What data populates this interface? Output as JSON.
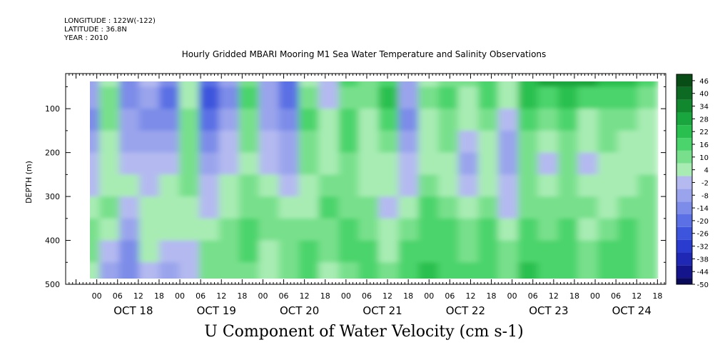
{
  "header": {
    "longitude": "LONGITUDE : 122W(-122)",
    "latitude": "LATITUDE : 36.8N",
    "year": "YEAR : 2010"
  },
  "chart_data": {
    "type": "heatmap",
    "title": "Hourly Gridded MBARI Mooring M1 Sea Water Temperature and Salinity Observations",
    "bottom_title": "U Component of Water Velocity (cm s-1)",
    "ylabel": "DEPTH (m)",
    "ylim": [
      500,
      20
    ],
    "y_ticks": [
      "100",
      "200",
      "300",
      "400",
      "500"
    ],
    "x_hour_ticks": [
      "00",
      "06",
      "12",
      "18",
      "00",
      "06",
      "12",
      "18",
      "00",
      "06",
      "12",
      "18",
      "00",
      "06",
      "12",
      "18",
      "00",
      "06",
      "12",
      "18",
      "00",
      "06",
      "12",
      "18",
      "00",
      "06",
      "12",
      "18"
    ],
    "x_day_labels": [
      "OCT 18",
      "OCT 19",
      "OCT 20",
      "OCT 21",
      "OCT 22",
      "OCT 23",
      "OCT 24"
    ],
    "colorbar_labels": [
      "46",
      "40",
      "34",
      "28",
      "22",
      "16",
      "10",
      "4",
      "-2",
      "-8",
      "-14",
      "-20",
      "-26",
      "-32",
      "-38",
      "-44",
      "-50"
    ],
    "colorbar_range": [
      -50,
      49
    ],
    "time_columns": [
      "17.67",
      "17.91",
      "18.15",
      "18.39",
      "18.63",
      "18.87",
      "19.11",
      "19.35",
      "19.59",
      "19.83",
      "20.07",
      "20.31",
      "20.55",
      "20.79",
      "21.03",
      "21.27",
      "21.51",
      "21.75",
      "21.99",
      "22.23",
      "22.47",
      "22.71",
      "22.95",
      "23.19",
      "23.43",
      "23.67",
      "23.91",
      "24.15",
      "24.39",
      "24.63"
    ],
    "depth_rows": [
      25,
      75,
      125,
      175,
      225,
      275,
      325,
      375,
      425,
      475
    ],
    "values": [
      [
        8,
        -6,
        4,
        -12,
        -4,
        -16,
        2,
        -20,
        -8,
        12,
        -6,
        -18,
        6,
        -4,
        14,
        10,
        18,
        -8,
        6,
        12,
        8,
        16,
        2,
        24,
        28,
        30,
        26,
        22,
        20,
        18
      ],
      [
        6,
        -10,
        10,
        -14,
        -8,
        -18,
        6,
        -24,
        -12,
        14,
        -10,
        -22,
        10,
        -2,
        12,
        8,
        20,
        -10,
        12,
        16,
        6,
        14,
        4,
        20,
        18,
        24,
        14,
        18,
        16,
        12
      ],
      [
        2,
        -12,
        8,
        -10,
        -12,
        -14,
        8,
        -20,
        -6,
        10,
        -8,
        -16,
        14,
        2,
        16,
        6,
        14,
        -12,
        4,
        12,
        2,
        10,
        -2,
        16,
        10,
        18,
        6,
        12,
        10,
        6
      ],
      [
        -2,
        -8,
        4,
        -6,
        -10,
        -6,
        10,
        -14,
        -4,
        8,
        -4,
        -10,
        12,
        4,
        18,
        4,
        10,
        -8,
        2,
        8,
        -4,
        6,
        -6,
        12,
        4,
        12,
        2,
        8,
        4,
        2
      ],
      [
        -6,
        -4,
        2,
        -2,
        -4,
        0,
        12,
        -8,
        -2,
        6,
        0,
        -6,
        8,
        6,
        12,
        2,
        6,
        -4,
        6,
        4,
        -6,
        2,
        -8,
        8,
        0,
        8,
        0,
        4,
        2,
        6
      ],
      [
        -8,
        0,
        6,
        2,
        -2,
        4,
        10,
        -4,
        2,
        8,
        4,
        -2,
        4,
        10,
        8,
        6,
        2,
        0,
        10,
        6,
        -2,
        6,
        -4,
        10,
        4,
        10,
        4,
        2,
        6,
        8
      ],
      [
        -4,
        4,
        8,
        -4,
        2,
        6,
        6,
        0,
        6,
        12,
        8,
        4,
        6,
        14,
        10,
        10,
        -2,
        6,
        14,
        10,
        4,
        10,
        0,
        12,
        8,
        12,
        8,
        6,
        10,
        12
      ],
      [
        -2,
        8,
        4,
        -8,
        6,
        2,
        2,
        4,
        8,
        16,
        10,
        8,
        10,
        12,
        14,
        12,
        2,
        10,
        16,
        14,
        8,
        14,
        4,
        16,
        12,
        14,
        6,
        10,
        14,
        10
      ],
      [
        2,
        10,
        -2,
        -12,
        4,
        -2,
        -2,
        8,
        10,
        14,
        6,
        10,
        14,
        8,
        16,
        16,
        6,
        14,
        18,
        16,
        12,
        16,
        8,
        18,
        14,
        16,
        10,
        14,
        16,
        8
      ],
      [
        4,
        6,
        -6,
        -14,
        0,
        -6,
        -4,
        10,
        12,
        10,
        2,
        12,
        16,
        4,
        12,
        18,
        8,
        16,
        20,
        18,
        14,
        18,
        10,
        20,
        16,
        18,
        12,
        16,
        18,
        10
      ]
    ]
  }
}
